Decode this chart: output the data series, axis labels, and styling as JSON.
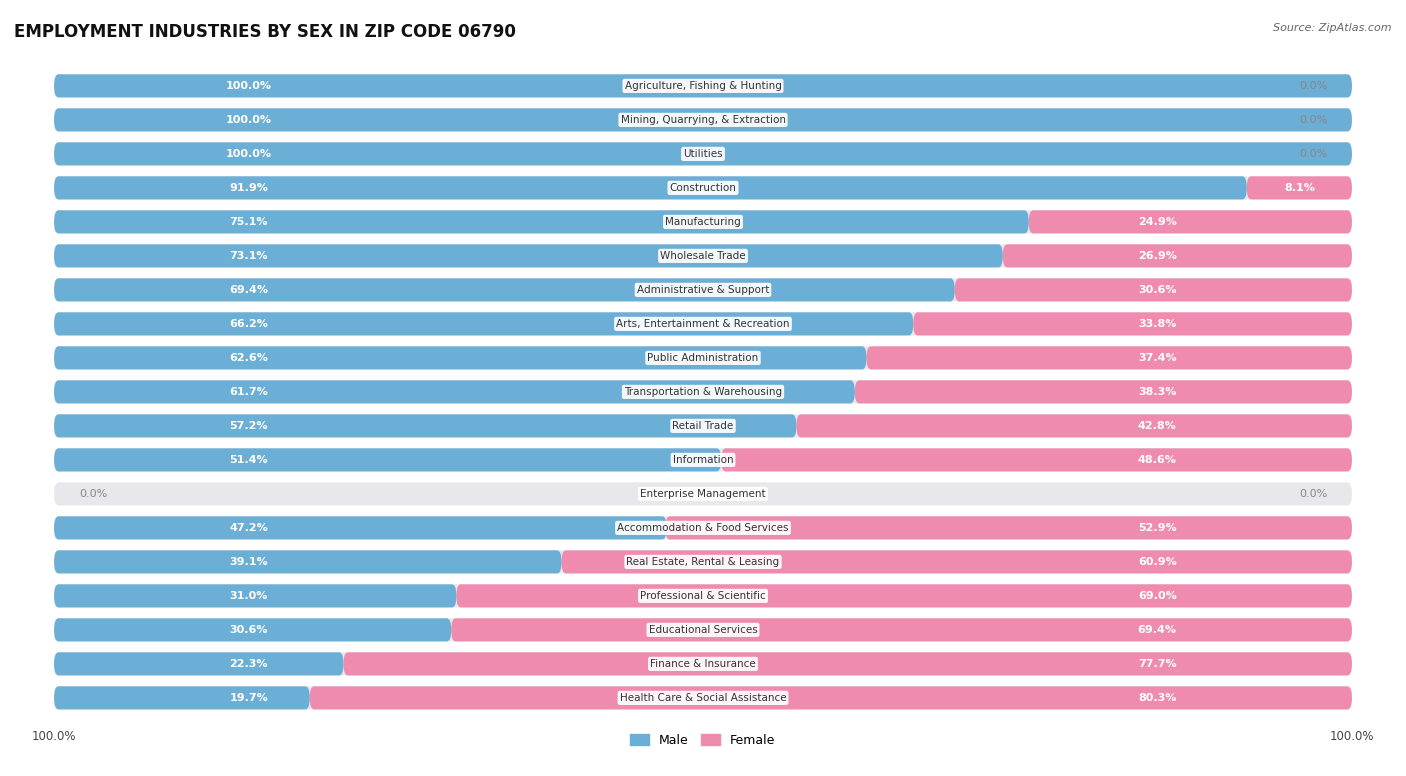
{
  "title": "EMPLOYMENT INDUSTRIES BY SEX IN ZIP CODE 06790",
  "source": "Source: ZipAtlas.com",
  "male_color": "#6baed6",
  "female_color": "#f08bb0",
  "background_color": "#ffffff",
  "row_bg_color": "#e8e8ec",
  "categories": [
    "Agriculture, Fishing & Hunting",
    "Mining, Quarrying, & Extraction",
    "Utilities",
    "Construction",
    "Manufacturing",
    "Wholesale Trade",
    "Administrative & Support",
    "Arts, Entertainment & Recreation",
    "Public Administration",
    "Transportation & Warehousing",
    "Retail Trade",
    "Information",
    "Enterprise Management",
    "Accommodation & Food Services",
    "Real Estate, Rental & Leasing",
    "Professional & Scientific",
    "Educational Services",
    "Finance & Insurance",
    "Health Care & Social Assistance"
  ],
  "male_pct": [
    100.0,
    100.0,
    100.0,
    91.9,
    75.1,
    73.1,
    69.4,
    66.2,
    62.6,
    61.7,
    57.2,
    51.4,
    0.0,
    47.2,
    39.1,
    31.0,
    30.6,
    22.3,
    19.7
  ],
  "female_pct": [
    0.0,
    0.0,
    0.0,
    8.1,
    24.9,
    26.9,
    30.6,
    33.8,
    37.4,
    38.3,
    42.8,
    48.6,
    0.0,
    52.9,
    60.9,
    69.0,
    69.4,
    77.7,
    80.3
  ],
  "title_fontsize": 12,
  "label_fontsize": 8,
  "pct_fontsize": 8,
  "tick_fontsize": 8.5,
  "legend_fontsize": 9,
  "cat_fontsize": 7.5
}
